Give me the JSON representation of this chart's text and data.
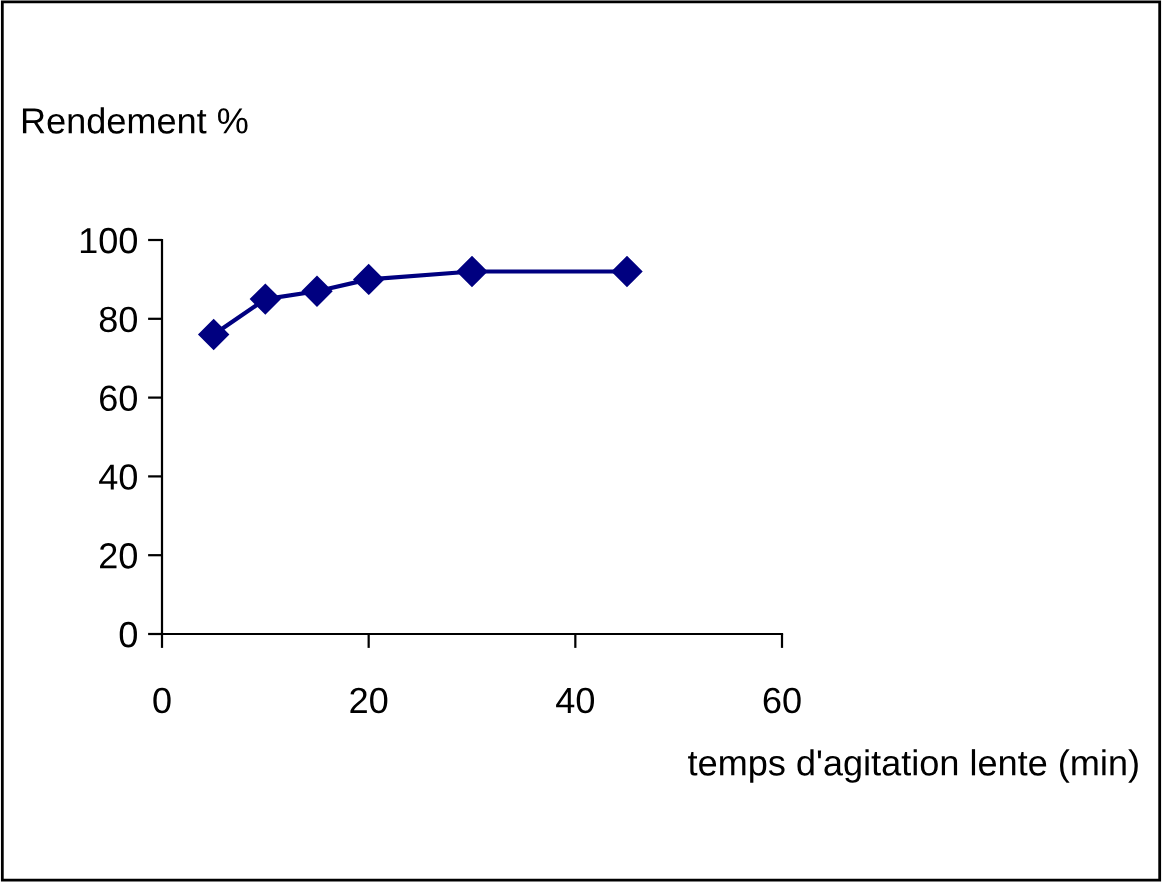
{
  "chart_data": {
    "type": "line",
    "xlabel": "temps d'agitation lente (min)",
    "ylabel": "Rendement %",
    "x": [
      5,
      10,
      15,
      20,
      30,
      45
    ],
    "series": [
      {
        "color": "#000080",
        "values": [
          76,
          85,
          87,
          90,
          92,
          92
        ]
      }
    ],
    "xlim": [
      0,
      60
    ],
    "xticks": [
      0,
      20,
      40,
      60
    ],
    "ylim": [
      0,
      100
    ],
    "yticks": [
      0,
      20,
      40,
      60,
      80,
      100
    ],
    "marker": "diamond",
    "line_style": "solid",
    "grid": false
  }
}
